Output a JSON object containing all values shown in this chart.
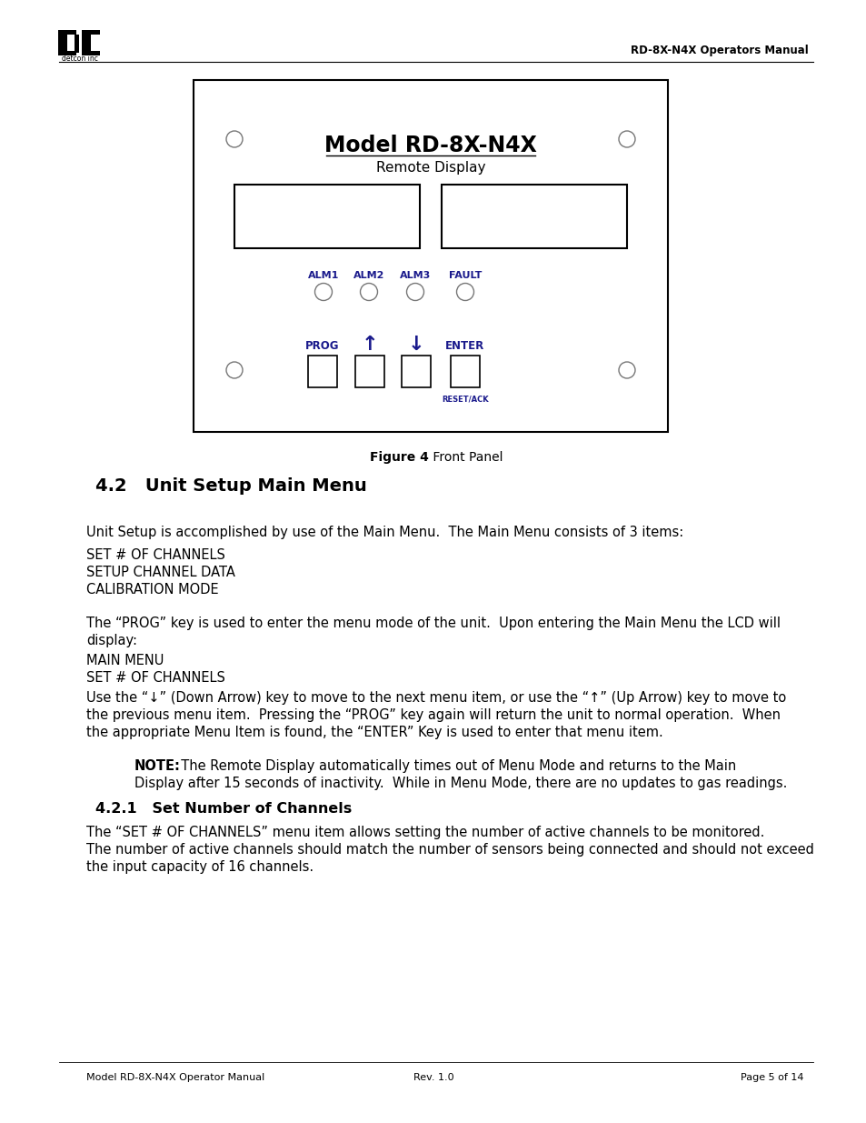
{
  "header_text": "RD-8X-N4X Operators Manual",
  "figure_caption_bold": "Figure 4",
  "figure_caption_normal": " Front Panel",
  "model_title": "Model RD-8X-N4X",
  "model_subtitle": "Remote Display",
  "section_title": "4.2   Unit Setup Main Menu",
  "body_text_1": "Unit Setup is accomplished by use of the Main Menu.  The Main Menu consists of 3 items:",
  "menu_item_1": "SET # OF CHANNELS",
  "menu_item_2": "SETUP CHANNEL DATA",
  "menu_item_3": "CALIBRATION MODE",
  "body_text_2a": "The “PROG” key is used to enter the menu mode of the unit.  Upon entering the Main Menu the LCD will",
  "body_text_2b": "display:",
  "display_line_1": "MAIN MENU",
  "display_line_2": "SET # OF CHANNELS",
  "body_text_3a": "Use the “↓” (Down Arrow) key to move to the next menu item, or use the “↑” (Up Arrow) key to move to",
  "body_text_3b": "the previous menu item.  Pressing the “PROG” key again will return the unit to normal operation.  When",
  "body_text_3c": "the appropriate Menu Item is found, the “ENTER” Key is used to enter that menu item.",
  "note_label": "NOTE:",
  "note_line_1": "  The Remote Display automatically times out of Menu Mode and returns to the Main",
  "note_line_2": "Display after 15 seconds of inactivity.  While in Menu Mode, there are no updates to gas readings.",
  "subsection_title": "4.2.1   Set Number of Channels",
  "sub_text_1": "The “SET # OF CHANNELS” menu item allows setting the number of active channels to be monitored.",
  "sub_text_2": "The number of active channels should match the number of sensors being connected and should not exceed",
  "sub_text_3": "the input capacity of 16 channels.",
  "footer_left": "Model RD-8X-N4X Operator Manual",
  "footer_center": "Rev. 1.0",
  "footer_right": "Page 5 of 14",
  "alm_labels": [
    "ALM1",
    "ALM2",
    "ALM3",
    "FAULT"
  ],
  "btn_labels": [
    "PROG",
    "ENTER"
  ],
  "reset_ack": "RESET/ACK",
  "bg_color": "#ffffff",
  "text_color": "#000000",
  "dark_blue": "#1a1a8c",
  "panel_border": "#000000"
}
